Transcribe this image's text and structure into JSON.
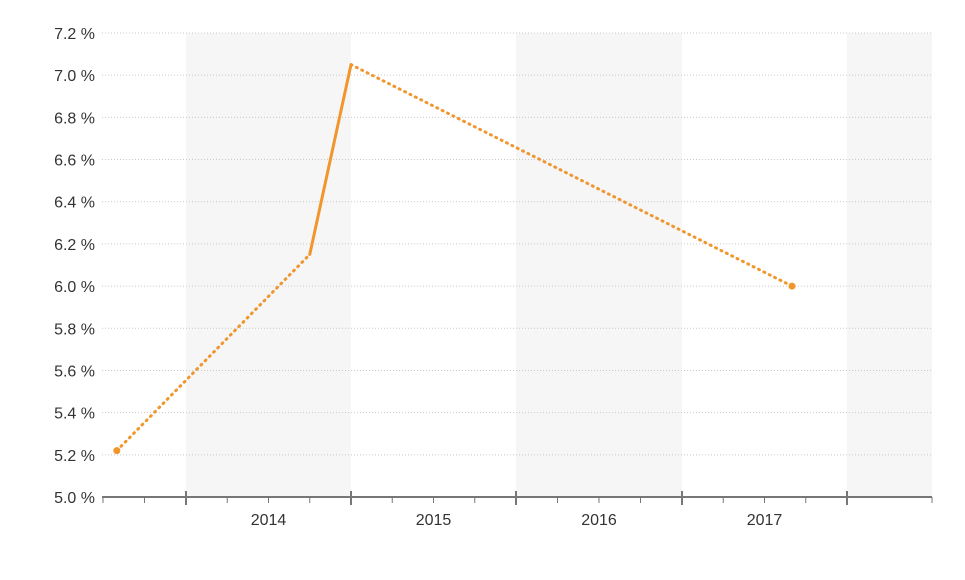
{
  "chart_data": {
    "type": "line",
    "title": "",
    "xlabel": "",
    "ylabel": "",
    "ylim": [
      5.0,
      7.2
    ],
    "y_ticks": [
      "5.0 %",
      "5.2 %",
      "5.4 %",
      "5.6 %",
      "5.8 %",
      "6.0 %",
      "6.2 %",
      "6.4 %",
      "6.6 %",
      "6.8 %",
      "7.0 %",
      "7.2 %"
    ],
    "x_tick_labels": [
      "2014",
      "2015",
      "2016",
      "2017"
    ],
    "grid": true,
    "alternating_year_bands": true,
    "series": [
      {
        "color": "#f0962d",
        "points": [
          {
            "date": "2013-08",
            "y": 5.22
          },
          {
            "date": "2014-10",
            "y": 6.15
          },
          {
            "date": "2015-01",
            "y": 7.05
          },
          {
            "date": "2017-09",
            "y": 6.0
          }
        ],
        "segment_styles": [
          "dotted",
          "solid",
          "dotted"
        ]
      }
    ]
  }
}
